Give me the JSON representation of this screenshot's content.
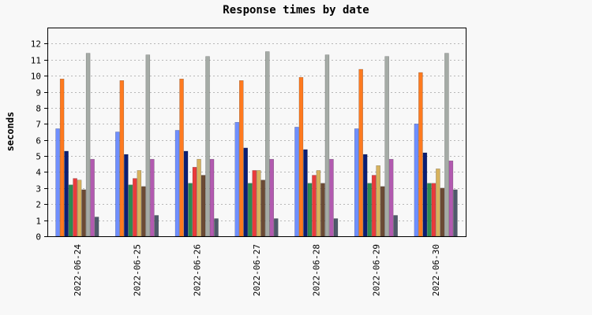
{
  "chart_data": {
    "type": "bar",
    "title": "Response times by date",
    "xlabel": "",
    "ylabel": "seconds",
    "ylim": [
      0,
      13
    ],
    "yticks": [
      0,
      1,
      2,
      3,
      4,
      5,
      6,
      7,
      8,
      9,
      10,
      11,
      12
    ],
    "grid": true,
    "categories": [
      "2022-06-24",
      "2022-06-25",
      "2022-06-26",
      "2022-06-27",
      "2022-06-28",
      "2022-06-29",
      "2022-06-30"
    ],
    "series": [
      {
        "color": "#6f8fff",
        "values": [
          6.7,
          6.5,
          6.6,
          7.1,
          6.8,
          6.7,
          7.0
        ]
      },
      {
        "color": "#ff7a1f",
        "values": [
          9.8,
          9.7,
          9.8,
          9.7,
          9.9,
          10.4,
          10.2
        ]
      },
      {
        "color": "#0b1e74",
        "values": [
          5.3,
          5.1,
          5.3,
          5.5,
          5.4,
          5.1,
          5.2
        ]
      },
      {
        "color": "#2c8b52",
        "values": [
          3.2,
          3.2,
          3.3,
          3.3,
          3.3,
          3.3,
          3.3
        ]
      },
      {
        "color": "#ea3b3b",
        "values": [
          3.6,
          3.6,
          4.3,
          4.1,
          3.8,
          3.8,
          3.3
        ]
      },
      {
        "color": "#d7b25c",
        "values": [
          3.5,
          4.1,
          4.8,
          4.1,
          4.1,
          4.4,
          4.2
        ]
      },
      {
        "color": "#6b4a34",
        "values": [
          2.9,
          3.1,
          3.8,
          3.5,
          3.3,
          3.1,
          3.0
        ]
      },
      {
        "color": "#a5aba6",
        "values": [
          11.4,
          11.3,
          11.2,
          11.5,
          11.3,
          11.2,
          11.4
        ]
      },
      {
        "color": "#b25ab0",
        "values": [
          4.8,
          4.8,
          4.8,
          4.8,
          4.8,
          4.8,
          4.7
        ]
      },
      {
        "color": "#4f5a6b",
        "values": [
          1.2,
          1.3,
          1.1,
          1.1,
          1.1,
          1.3,
          2.9
        ]
      }
    ]
  }
}
